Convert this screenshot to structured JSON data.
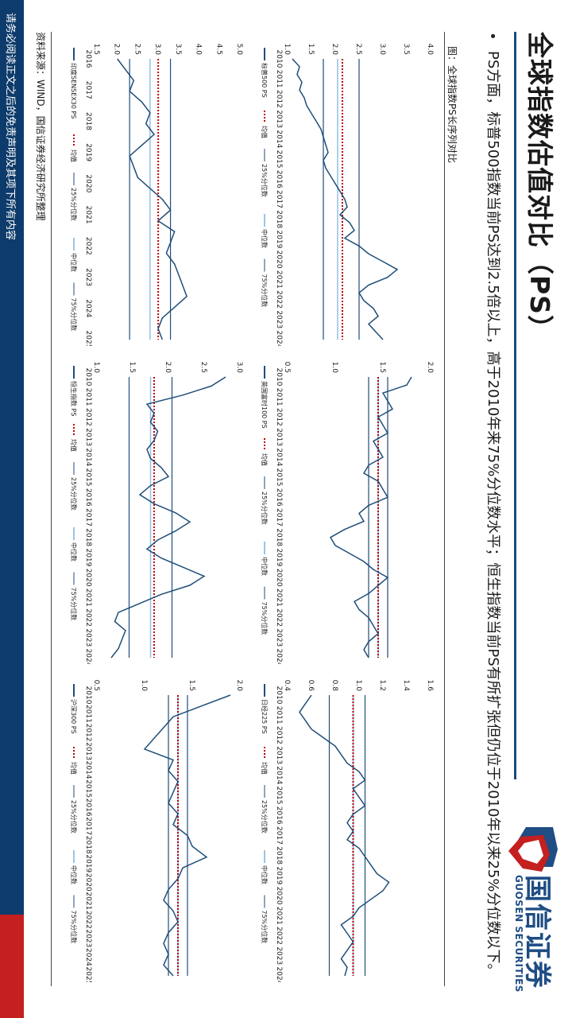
{
  "slide": {
    "title": "全球指数估值对比（PS）",
    "bullet": "PS方面，标普500指数当前PS达到2.5倍以上，高于2010年来75%分位数水平；恒生指数当前PS有所扩张但仍位于2010年以来25%分位数以下。",
    "figure_caption": "图：全球指数PS长序列对比",
    "source": "资料来源：WIND，国信证券经济研究所整理",
    "footer": "请务必阅读正文之后的免责声明及其项下所有内容",
    "logo": {
      "cn": "国信证券",
      "en": "GUOSEN SECURITIES"
    }
  },
  "colors": {
    "series": "#1f4e79",
    "mean": "#c00000",
    "q25": "#1f4e79",
    "median": "#9dc3e6",
    "q75": "#1f4e79",
    "brand_blue": "#1f4d84",
    "brand_red": "#c4201f"
  },
  "legend_labels": {
    "mean": "均值",
    "q25": "25%分位数",
    "median": "中位数",
    "q75": "75%分位数"
  },
  "chart_data": [
    {
      "type": "line",
      "series_name": "标普500 PS",
      "x_labels": [
        "2010",
        "2011",
        "2012",
        "2013",
        "2014",
        "2015",
        "2016",
        "2017",
        "2018",
        "2019",
        "2020",
        "2021",
        "2022",
        "2023",
        "2024"
      ],
      "ylim": [
        1.0,
        4.0
      ],
      "yticks": [
        "1.0",
        "1.5",
        "2.0",
        "2.5",
        "3.0",
        "3.5",
        "4.0"
      ],
      "mean": 2.15,
      "q25": 1.75,
      "median": 2.05,
      "q75": 2.5,
      "values": [
        1.1,
        1.25,
        1.2,
        1.3,
        1.25,
        1.35,
        1.4,
        1.5,
        1.6,
        1.7,
        1.75,
        1.8,
        1.85,
        1.75,
        1.8,
        1.9,
        2.0,
        2.1,
        2.2,
        2.25,
        2.1,
        2.3,
        2.4,
        2.2,
        2.5,
        2.7,
        3.0,
        3.3,
        3.1,
        2.7,
        2.5,
        2.6,
        2.8,
        2.9,
        2.7,
        2.85,
        3.0
      ]
    },
    {
      "type": "line",
      "series_name": "英国富时100 PS",
      "x_labels": [
        "2010",
        "2011",
        "2012",
        "2013",
        "2014",
        "2015",
        "2016",
        "2017",
        "2018",
        "2019",
        "2020",
        "2021",
        "2022",
        "2023",
        "2024"
      ],
      "ylim": [
        0.5,
        2.0
      ],
      "yticks": [
        "0.5",
        "1.0",
        "1.5",
        "2.0"
      ],
      "mean": 1.45,
      "q25": 1.35,
      "median": 1.45,
      "q75": 1.55,
      "values": [
        1.8,
        1.75,
        1.5,
        1.55,
        1.6,
        1.45,
        1.5,
        1.55,
        1.4,
        1.45,
        1.5,
        1.35,
        1.3,
        1.45,
        1.5,
        1.55,
        1.35,
        1.25,
        1.3,
        1.1,
        0.95,
        1.0,
        1.15,
        1.3,
        1.4,
        1.55,
        1.45,
        1.35,
        1.2,
        1.25,
        1.35,
        1.4,
        1.45,
        1.35,
        1.3,
        1.35
      ]
    },
    {
      "type": "line",
      "series_name": "日经225 PS",
      "x_labels": [
        "2010",
        "2011",
        "2012",
        "2013",
        "2014",
        "2015",
        "2016",
        "2017",
        "2018",
        "2019",
        "2020",
        "2021",
        "2022",
        "2023",
        "2024"
      ],
      "ylim": [
        0.4,
        1.6
      ],
      "yticks": [
        "0.4",
        "0.6",
        "0.8",
        "1.0",
        "1.2",
        "1.4",
        "1.6"
      ],
      "mean": 0.95,
      "q25": 0.75,
      "median": 0.95,
      "q75": 1.05,
      "values": [
        0.6,
        0.55,
        0.5,
        0.55,
        0.6,
        0.7,
        0.8,
        0.85,
        0.9,
        1.0,
        1.05,
        0.95,
        1.0,
        1.05,
        0.95,
        0.9,
        0.95,
        0.9,
        1.0,
        1.05,
        1.1,
        1.15,
        1.25,
        1.2,
        1.1,
        1.0,
        0.95,
        0.85,
        0.9,
        0.95,
        0.9,
        0.85,
        0.9,
        0.88
      ]
    },
    {
      "type": "line",
      "series_name": "印度SENSEX30 PS",
      "x_labels": [
        "2016",
        "2017",
        "2018",
        "2019",
        "2020",
        "2021",
        "2022",
        "2023",
        "2024",
        "2025"
      ],
      "ylim": [
        1.5,
        5.0
      ],
      "yticks": [
        "1.5",
        "2.0",
        "2.5",
        "3.0",
        "3.5",
        "4.0",
        "4.5",
        "5.0"
      ],
      "mean": 3.0,
      "q25": 2.3,
      "median": 2.8,
      "q75": 3.3,
      "values": [
        2.0,
        2.2,
        2.4,
        2.3,
        2.6,
        2.8,
        2.7,
        2.9,
        2.6,
        2.3,
        2.4,
        2.5,
        2.8,
        3.1,
        3.3,
        3.0,
        3.4,
        3.3,
        3.2,
        3.4,
        3.5,
        3.6,
        3.7,
        3.4,
        3.1,
        3.0,
        3.1
      ]
    },
    {
      "type": "line",
      "series_name": "恒生指数 PS",
      "x_labels": [
        "2010",
        "2011",
        "2012",
        "2013",
        "2014",
        "2015",
        "2016",
        "2017",
        "2018",
        "2019",
        "2020",
        "2021",
        "2022",
        "2023",
        "2024"
      ],
      "ylim": [
        1.0,
        3.0
      ],
      "yticks": [
        "1.0",
        "1.5",
        "2.0",
        "2.5",
        "3.0"
      ],
      "mean": 1.8,
      "q25": 1.45,
      "median": 1.75,
      "q75": 2.05,
      "values": [
        2.8,
        2.6,
        2.2,
        1.7,
        1.8,
        1.75,
        1.85,
        1.8,
        1.7,
        1.75,
        1.9,
        2.0,
        1.75,
        1.6,
        1.8,
        2.1,
        2.3,
        2.1,
        1.85,
        1.7,
        1.9,
        2.2,
        2.5,
        2.3,
        1.9,
        1.6,
        1.3,
        1.25,
        1.4,
        1.35,
        1.3,
        1.2
      ]
    },
    {
      "type": "line",
      "series_name": "沪深300 PS",
      "x_labels": [
        "2010",
        "2011",
        "2012",
        "2013",
        "2014",
        "2015",
        "2016",
        "2017",
        "2018",
        "2019",
        "2020",
        "2021",
        "2022",
        "2023",
        "2024",
        "2025"
      ],
      "ylim": [
        0.5,
        2.0
      ],
      "yticks": [
        "0.5",
        "1.0",
        "1.5",
        "2.0"
      ],
      "mean": 1.35,
      "q25": 1.25,
      "median": 1.35,
      "q75": 1.45,
      "values": [
        1.9,
        1.6,
        1.3,
        1.2,
        1.1,
        1.0,
        1.3,
        1.25,
        1.35,
        1.3,
        1.25,
        1.35,
        1.3,
        1.45,
        1.5,
        1.65,
        1.4,
        1.35,
        1.25,
        1.2,
        1.3,
        1.35,
        1.25,
        1.2,
        1.25,
        1.2,
        1.3
      ]
    }
  ]
}
